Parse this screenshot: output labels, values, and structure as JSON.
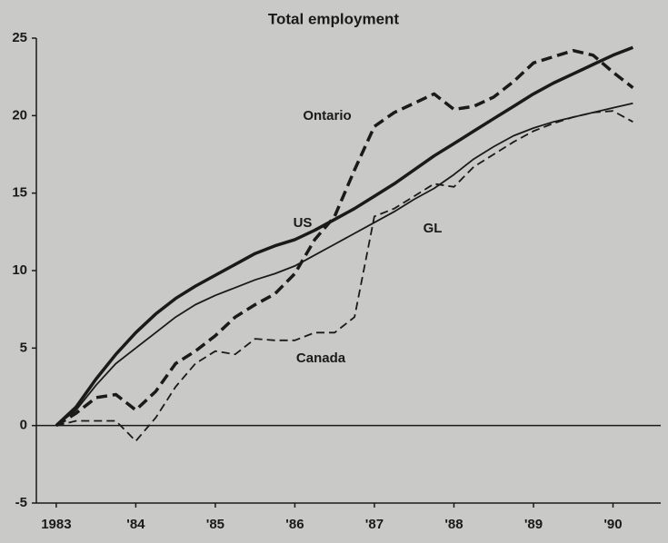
{
  "chart_data": {
    "type": "line",
    "title": "Total employment",
    "x": [
      1983.5,
      1983.75,
      1984,
      1984.25,
      1984.5,
      1984.75,
      1985,
      1985.25,
      1985.5,
      1985.75,
      1986,
      1986.25,
      1986.5,
      1986.75,
      1987,
      1987.25,
      1987.5,
      1987.75,
      1988,
      1988.25,
      1988.5,
      1988.75,
      1989,
      1989.25,
      1989.5,
      1989.75,
      1990,
      1990.25,
      1990.5,
      1990.75
    ],
    "series": [
      {
        "name": "US",
        "color": "#1a1a1a",
        "width": 3.5,
        "dash": false,
        "values": [
          0,
          1.2,
          3.0,
          4.6,
          6.0,
          7.2,
          8.2,
          9.0,
          9.7,
          10.4,
          11.1,
          11.6,
          12.0,
          12.6,
          13.3,
          14.0,
          14.8,
          15.6,
          16.5,
          17.4,
          18.2,
          19.0,
          19.8,
          20.6,
          21.4,
          22.1,
          22.7,
          23.3,
          23.9,
          24.4
        ]
      },
      {
        "name": "GL",
        "color": "#1a1a1a",
        "width": 1.8,
        "dash": false,
        "values": [
          0,
          1.0,
          2.6,
          4.0,
          5.0,
          6.0,
          7.0,
          7.8,
          8.4,
          8.9,
          9.4,
          9.8,
          10.3,
          11.0,
          11.7,
          12.4,
          13.1,
          13.8,
          14.6,
          15.3,
          16.2,
          17.2,
          18.0,
          18.7,
          19.2,
          19.6,
          19.9,
          20.2,
          20.5,
          20.8
        ]
      },
      {
        "name": "Ontario",
        "color": "#1a1a1a",
        "width": 3.5,
        "dash": true,
        "values": [
          0,
          0.8,
          1.8,
          2.0,
          1.0,
          2.2,
          4.0,
          4.8,
          5.8,
          7.0,
          7.8,
          8.5,
          9.8,
          12.0,
          13.5,
          16.5,
          19.3,
          20.2,
          20.8,
          21.4,
          20.4,
          20.6,
          21.2,
          22.2,
          23.4,
          23.8,
          24.2,
          23.9,
          22.8,
          21.8
        ]
      },
      {
        "name": "Canada",
        "color": "#1a1a1a",
        "width": 1.8,
        "dash": true,
        "values": [
          0,
          0.3,
          0.3,
          0.3,
          -1.0,
          0.5,
          2.5,
          4.0,
          4.8,
          4.6,
          5.6,
          5.5,
          5.5,
          6.0,
          6.0,
          7.0,
          13.5,
          14.0,
          14.8,
          15.6,
          15.4,
          16.7,
          17.5,
          18.3,
          19.0,
          19.5,
          19.9,
          20.2,
          20.3,
          19.6
        ]
      }
    ],
    "xlim": [
      1983.25,
      1991.1
    ],
    "xticks": [
      {
        "value": 1983.5,
        "label": "1983"
      },
      {
        "value": 1984.5,
        "label": "'84"
      },
      {
        "value": 1985.5,
        "label": "'85"
      },
      {
        "value": 1986.5,
        "label": "'86"
      },
      {
        "value": 1987.5,
        "label": "'87"
      },
      {
        "value": 1988.5,
        "label": "'88"
      },
      {
        "value": 1989.5,
        "label": "'89"
      },
      {
        "value": 1990.5,
        "label": "'90"
      }
    ],
    "ylim": [
      -5,
      25
    ],
    "yticks": [
      -5,
      0,
      5,
      10,
      15,
      20,
      25
    ],
    "zero_line": true
  }
}
